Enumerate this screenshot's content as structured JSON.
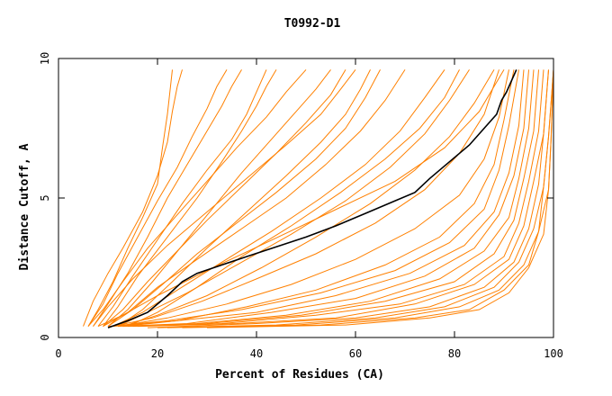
{
  "chart_data": {
    "type": "line",
    "title": "T0992-D1",
    "xlabel": "Percent of Residues (CA)",
    "ylabel": "Distance Cutoff, A",
    "xlim": [
      0,
      100
    ],
    "ylim": [
      0,
      10
    ],
    "x_ticks": [
      "0",
      "20",
      "40",
      "60",
      "80",
      "100"
    ],
    "y_ticks": [
      "0",
      "5",
      "10"
    ],
    "grid": false,
    "legend": "none",
    "colors": {
      "series": "#ff8000",
      "highlight": "#000000",
      "axes": "#000000",
      "background": "#ffffff"
    },
    "highlight_series": {
      "x": [
        10,
        14,
        18,
        22,
        25,
        28,
        33,
        38,
        44,
        50,
        56,
        62,
        68,
        72,
        75,
        79,
        83,
        86,
        88.5,
        89.5,
        90.5,
        91.5,
        92.5
      ],
      "y": [
        0.35,
        0.6,
        0.9,
        1.5,
        2.0,
        2.3,
        2.6,
        2.9,
        3.25,
        3.6,
        4.0,
        4.45,
        4.9,
        5.2,
        5.7,
        6.3,
        6.9,
        7.5,
        8.0,
        8.5,
        8.8,
        9.2,
        9.6
      ]
    },
    "series": [
      {
        "x": [
          5,
          7,
          10,
          13,
          17,
          20,
          22,
          23,
          24,
          25
        ],
        "y": [
          0.4,
          1.3,
          2.3,
          3.2,
          4.5,
          5.8,
          7.0,
          8.1,
          9.0,
          9.6
        ]
      },
      {
        "x": [
          6,
          8,
          11,
          14,
          17,
          20,
          21,
          22,
          23
        ],
        "y": [
          0.4,
          1.0,
          2.0,
          3.2,
          4.3,
          5.5,
          6.8,
          8.0,
          9.6
        ]
      },
      {
        "x": [
          7,
          10,
          14,
          18,
          22,
          26,
          30,
          33,
          35,
          37
        ],
        "y": [
          0.4,
          1.2,
          2.3,
          3.6,
          5.0,
          6.2,
          7.4,
          8.3,
          9.0,
          9.6
        ]
      },
      {
        "x": [
          8,
          11,
          15,
          20,
          25,
          30,
          35,
          38,
          40,
          42
        ],
        "y": [
          0.4,
          1.1,
          2.2,
          3.5,
          4.8,
          6.0,
          7.1,
          8.0,
          8.8,
          9.6
        ]
      },
      {
        "x": [
          6,
          9,
          13,
          18,
          24,
          30,
          36,
          42,
          46,
          50
        ],
        "y": [
          0.4,
          1.0,
          2.0,
          3.2,
          4.4,
          5.6,
          6.8,
          7.9,
          8.8,
          9.6
        ]
      },
      {
        "x": [
          9,
          13,
          18,
          24,
          30,
          37,
          44,
          50,
          55,
          58
        ],
        "y": [
          0.4,
          1.0,
          2.0,
          3.1,
          4.2,
          5.4,
          6.6,
          7.7,
          8.7,
          9.6
        ]
      },
      {
        "x": [
          10,
          15,
          21,
          28,
          36,
          44,
          52,
          58,
          62,
          65
        ],
        "y": [
          0.4,
          1.0,
          1.9,
          3.0,
          4.1,
          5.2,
          6.4,
          7.5,
          8.6,
          9.6
        ]
      },
      {
        "x": [
          9,
          14,
          20,
          28,
          37,
          46,
          54,
          61,
          66,
          70
        ],
        "y": [
          0.4,
          0.9,
          1.8,
          2.8,
          3.9,
          5.0,
          6.2,
          7.4,
          8.5,
          9.6
        ]
      },
      {
        "x": [
          11,
          17,
          24,
          33,
          43,
          53,
          62,
          69,
          74,
          78
        ],
        "y": [
          0.4,
          0.9,
          1.7,
          2.7,
          3.8,
          5.0,
          6.2,
          7.4,
          8.6,
          9.6
        ]
      },
      {
        "x": [
          12,
          18,
          26,
          36,
          47,
          58,
          67,
          74,
          79,
          83
        ],
        "y": [
          0.4,
          0.9,
          1.6,
          2.6,
          3.7,
          4.9,
          6.1,
          7.3,
          8.5,
          9.6
        ]
      },
      {
        "x": [
          13,
          20,
          30,
          41,
          52,
          63,
          72,
          79,
          84,
          88
        ],
        "y": [
          0.4,
          0.8,
          1.5,
          2.5,
          3.6,
          4.8,
          6.0,
          7.2,
          8.4,
          9.6
        ]
      },
      {
        "x": [
          11,
          19,
          29,
          40,
          52,
          64,
          74,
          81,
          86,
          89
        ],
        "y": [
          0.4,
          0.7,
          1.3,
          2.1,
          3.0,
          4.1,
          5.3,
          6.6,
          8.0,
          9.6
        ]
      },
      {
        "x": [
          12,
          22,
          34,
          47,
          60,
          72,
          81,
          86,
          89,
          91
        ],
        "y": [
          0.4,
          0.7,
          1.2,
          1.9,
          2.8,
          3.9,
          5.1,
          6.4,
          7.9,
          9.6
        ]
      },
      {
        "x": [
          13,
          24,
          38,
          52,
          66,
          77,
          84,
          88,
          90,
          92
        ],
        "y": [
          0.4,
          0.6,
          1.1,
          1.7,
          2.6,
          3.6,
          4.8,
          6.2,
          7.8,
          9.6
        ]
      },
      {
        "x": [
          10,
          22,
          37,
          53,
          68,
          79,
          86,
          89,
          91,
          93
        ],
        "y": [
          0.4,
          0.6,
          1.0,
          1.6,
          2.4,
          3.4,
          4.6,
          6.0,
          7.6,
          9.6
        ]
      },
      {
        "x": [
          11,
          24,
          40,
          56,
          71,
          82,
          88,
          91,
          93,
          94
        ],
        "y": [
          0.4,
          0.6,
          0.9,
          1.5,
          2.3,
          3.3,
          4.5,
          5.9,
          7.6,
          9.6
        ]
      },
      {
        "x": [
          12,
          26,
          43,
          60,
          74,
          84,
          89,
          92,
          94,
          95
        ],
        "y": [
          0.4,
          0.5,
          0.9,
          1.4,
          2.2,
          3.2,
          4.4,
          5.8,
          7.5,
          9.6
        ]
      },
      {
        "x": [
          13,
          28,
          46,
          63,
          77,
          86,
          91,
          93,
          95,
          96
        ],
        "y": [
          0.4,
          0.5,
          0.8,
          1.3,
          2.1,
          3.1,
          4.3,
          5.7,
          7.5,
          9.6
        ]
      },
      {
        "x": [
          14,
          30,
          49,
          66,
          80,
          88,
          92,
          94,
          96,
          97
        ],
        "y": [
          0.4,
          0.5,
          0.8,
          1.3,
          2.0,
          3.0,
          4.2,
          5.7,
          7.4,
          9.6
        ]
      },
      {
        "x": [
          15,
          33,
          52,
          69,
          82,
          90,
          93,
          95,
          97,
          98
        ],
        "y": [
          0.4,
          0.5,
          0.8,
          1.2,
          1.9,
          2.9,
          4.1,
          5.6,
          7.4,
          9.6
        ]
      },
      {
        "x": [
          16,
          36,
          56,
          72,
          84,
          91,
          94,
          96,
          98,
          99
        ],
        "y": [
          0.4,
          0.5,
          0.7,
          1.2,
          1.9,
          2.8,
          4.0,
          5.6,
          7.3,
          9.6
        ]
      },
      {
        "x": [
          18,
          40,
          60,
          75,
          86,
          92,
          95,
          97,
          98,
          99
        ],
        "y": [
          0.35,
          0.5,
          0.7,
          1.1,
          1.8,
          2.7,
          3.9,
          5.5,
          7.3,
          9.6
        ]
      },
      {
        "x": [
          20,
          44,
          64,
          78,
          88,
          93,
          96,
          98,
          99,
          100
        ],
        "y": [
          0.35,
          0.45,
          0.7,
          1.1,
          1.8,
          2.7,
          3.9,
          5.4,
          7.2,
          9.6
        ]
      },
      {
        "x": [
          22,
          48,
          68,
          81,
          89,
          94,
          97,
          98,
          99,
          100
        ],
        "y": [
          0.35,
          0.45,
          0.7,
          1.1,
          1.7,
          2.6,
          3.8,
          5.4,
          7.2,
          9.6
        ]
      },
      {
        "x": [
          25,
          53,
          72,
          83,
          90,
          95,
          97,
          99,
          99.5,
          100
        ],
        "y": [
          0.35,
          0.45,
          0.7,
          1.0,
          1.7,
          2.6,
          3.8,
          5.3,
          7.1,
          9.6
        ]
      },
      {
        "x": [
          30,
          58,
          75,
          85,
          91,
          95,
          98,
          99,
          99.5,
          100
        ],
        "y": [
          0.35,
          0.45,
          0.7,
          1.0,
          1.6,
          2.5,
          3.7,
          5.3,
          7.1,
          9.6
        ]
      },
      {
        "x": [
          8,
          13,
          20,
          30,
          42,
          55,
          68,
          78,
          85,
          90
        ],
        "y": [
          0.4,
          0.8,
          1.5,
          2.4,
          3.4,
          4.5,
          5.6,
          6.8,
          8.1,
          9.6
        ]
      },
      {
        "x": [
          9,
          12,
          16,
          22,
          28,
          33,
          37,
          40,
          42,
          44
        ],
        "y": [
          0.4,
          1.1,
          2.2,
          3.6,
          5.0,
          6.3,
          7.4,
          8.3,
          9.0,
          9.6
        ]
      },
      {
        "x": [
          10,
          14,
          19,
          25,
          31,
          37,
          43,
          48,
          52,
          55
        ],
        "y": [
          0.4,
          1.0,
          2.0,
          3.3,
          4.6,
          5.9,
          7.1,
          8.1,
          8.9,
          9.6
        ]
      },
      {
        "x": [
          12,
          17,
          23,
          30,
          38,
          46,
          53,
          58,
          61,
          63
        ],
        "y": [
          0.4,
          1.0,
          2.0,
          3.2,
          4.5,
          5.8,
          7.0,
          8.0,
          8.9,
          9.6
        ]
      },
      {
        "x": [
          14,
          20,
          28,
          37,
          47,
          57,
          66,
          73,
          78,
          81
        ],
        "y": [
          0.4,
          0.9,
          1.8,
          2.9,
          4.0,
          5.2,
          6.4,
          7.5,
          8.6,
          9.6
        ]
      },
      {
        "x": [
          7,
          10,
          15,
          22,
          30,
          38,
          46,
          53,
          57,
          60
        ],
        "y": [
          0.4,
          1.1,
          2.1,
          3.3,
          4.5,
          5.7,
          6.9,
          8.0,
          8.9,
          9.6
        ]
      },
      {
        "x": [
          6,
          9,
          12,
          16,
          20,
          24,
          27,
          30,
          32,
          34
        ],
        "y": [
          0.4,
          1.2,
          2.3,
          3.6,
          4.9,
          6.1,
          7.2,
          8.2,
          9.0,
          9.6
        ]
      }
    ]
  }
}
